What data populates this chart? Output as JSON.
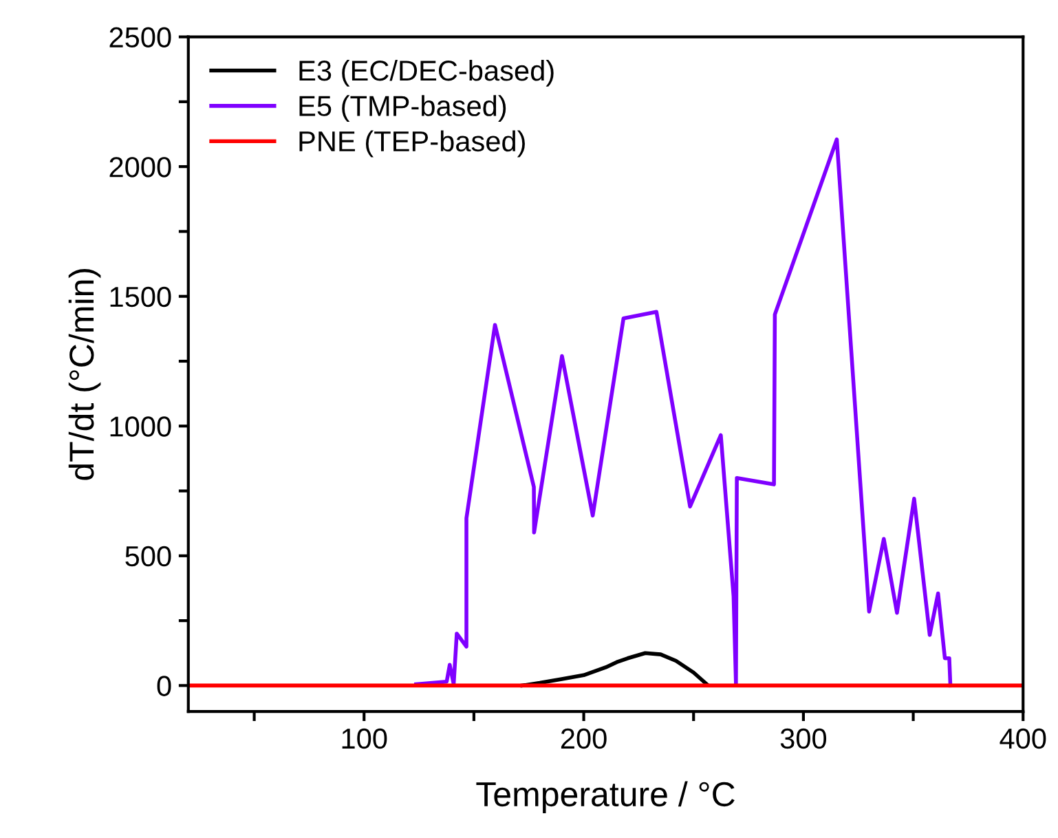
{
  "chart_data": {
    "type": "line",
    "xlabel": "Temperature / °C",
    "ylabel": "dT/dt (°C/min)",
    "xlim": [
      20,
      400
    ],
    "xticks": [
      {
        "value": 50,
        "label": null
      },
      100,
      {
        "value": 150,
        "label": null
      },
      200,
      {
        "value": 250,
        "label": null
      },
      300,
      {
        "value": 350,
        "label": null
      },
      400
    ],
    "ylim": [
      -100,
      2500
    ],
    "yticks": [
      {
        "value": 0,
        "label": "0"
      },
      {
        "value": 250,
        "label": null
      },
      500,
      {
        "value": 750,
        "label": null
      },
      1000,
      {
        "value": 1250,
        "label": null
      },
      1500,
      {
        "value": 1750,
        "label": null
      },
      2000,
      {
        "value": 2250,
        "label": null
      },
      2500
    ],
    "grid": false,
    "legend": "top left",
    "marker": "none",
    "line_style": "solid",
    "series": [
      {
        "name": "E3 (EC/DEC-based)",
        "color": "#000000",
        "x": [
          172,
          180,
          190,
          200,
          210,
          215,
          220,
          228,
          235,
          242,
          250,
          256
        ],
        "values": [
          0,
          10,
          25,
          40,
          70,
          90,
          105,
          125,
          120,
          95,
          50,
          5
        ]
      },
      {
        "name": "E5 (TMP-based)",
        "color": "#7f00ff",
        "x": [
          123.7,
          137.6,
          139,
          140.8,
          142.2,
          146.6,
          146.6,
          159.6,
          177.3,
          177.4,
          190.1,
          204.1,
          218.1,
          233.1,
          248.4,
          262.4,
          268.2,
          269.3,
          269.7,
          286.6,
          287,
          315.2,
          329.9,
          336.6,
          342.6,
          350.4,
          357.5,
          361.3,
          364.4,
          366.4,
          366.9
        ],
        "values": [
          5,
          15,
          80,
          5,
          200,
          150,
          645,
          1390,
          765,
          590,
          1270,
          655,
          1415,
          1440,
          690,
          965,
          345,
          5,
          800,
          775,
          1430,
          2105,
          285,
          565,
          280,
          720,
          195,
          355,
          105,
          105,
          0
        ]
      },
      {
        "name": "PNE (TEP-based)",
        "color": "#ff0000",
        "x": [
          20,
          400
        ],
        "values": [
          0,
          0
        ]
      }
    ]
  }
}
